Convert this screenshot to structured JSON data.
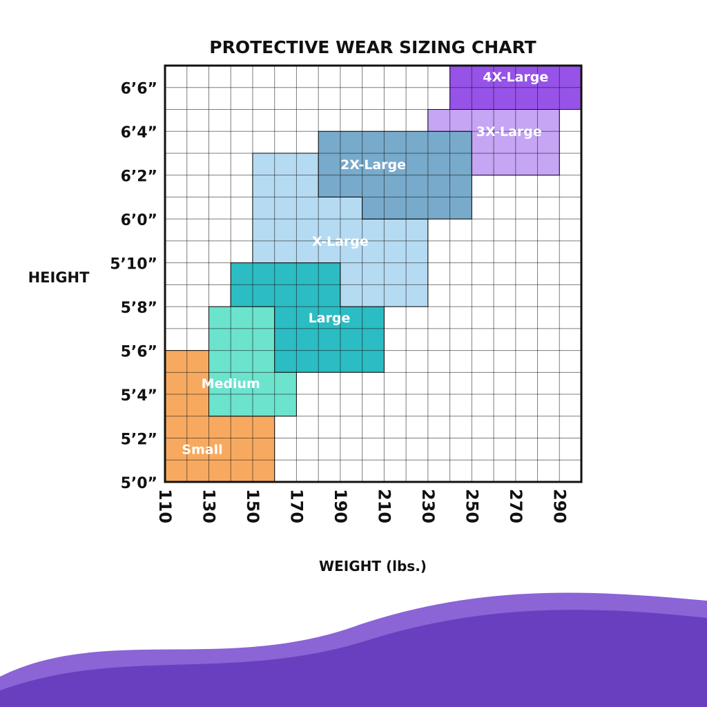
{
  "chart_data": {
    "type": "area",
    "title": "PROTECTIVE WEAR SIZING CHART",
    "xlabel": "WEIGHT (lbs.)",
    "ylabel": "HEIGHT",
    "x_unit": "lbs",
    "y_unit": "inches",
    "xlim": [
      110,
      300
    ],
    "ylim": [
      60,
      79
    ],
    "x_ticks": [
      {
        "value": 110,
        "label": "110"
      },
      {
        "value": 130,
        "label": "130"
      },
      {
        "value": 150,
        "label": "150"
      },
      {
        "value": 170,
        "label": "170"
      },
      {
        "value": 190,
        "label": "190"
      },
      {
        "value": 210,
        "label": "210"
      },
      {
        "value": 230,
        "label": "230"
      },
      {
        "value": 250,
        "label": "250"
      },
      {
        "value": 270,
        "label": "270"
      },
      {
        "value": 290,
        "label": "290"
      }
    ],
    "y_ticks": [
      {
        "value": 60,
        "label": "5’0”"
      },
      {
        "value": 62,
        "label": "5’2”"
      },
      {
        "value": 64,
        "label": "5’4”"
      },
      {
        "value": 66,
        "label": "5’6”"
      },
      {
        "value": 68,
        "label": "5’8”"
      },
      {
        "value": 70,
        "label": "5’10”"
      },
      {
        "value": 72,
        "label": "6’0”"
      },
      {
        "value": 74,
        "label": "6’2”"
      },
      {
        "value": 76,
        "label": "6’4”"
      },
      {
        "value": 78,
        "label": "6’6”"
      }
    ],
    "grid": true,
    "grid_x_step": 10,
    "grid_y_step": 1,
    "regions": [
      {
        "name": "Small",
        "color": "#f7aa5f",
        "label_at": [
          127,
          61.5
        ],
        "polygon": [
          [
            110,
            60
          ],
          [
            160,
            60
          ],
          [
            160,
            63
          ],
          [
            130,
            63
          ],
          [
            130,
            66
          ],
          [
            110,
            66
          ]
        ]
      },
      {
        "name": "Medium",
        "color": "#6be3cd",
        "label_at": [
          140,
          64.5
        ],
        "polygon": [
          [
            130,
            63
          ],
          [
            170,
            63
          ],
          [
            170,
            66
          ],
          [
            160,
            66
          ],
          [
            160,
            68
          ],
          [
            150,
            68
          ],
          [
            150,
            69
          ],
          [
            140,
            69
          ],
          [
            140,
            68
          ],
          [
            130,
            68
          ]
        ]
      },
      {
        "name": "Large",
        "color": "#2cbcc3",
        "label_at": [
          185,
          67.5
        ],
        "polygon": [
          [
            160,
            65
          ],
          [
            210,
            65
          ],
          [
            210,
            68
          ],
          [
            190,
            68
          ],
          [
            190,
            70
          ],
          [
            140,
            70
          ],
          [
            140,
            68
          ],
          [
            160,
            68
          ]
        ]
      },
      {
        "name": "X-Large",
        "color": "#b5dbf2",
        "label_at": [
          190,
          71
        ],
        "polygon": [
          [
            190,
            68
          ],
          [
            230,
            68
          ],
          [
            230,
            72
          ],
          [
            200,
            72
          ],
          [
            200,
            73
          ],
          [
            180,
            73
          ],
          [
            180,
            75
          ],
          [
            150,
            75
          ],
          [
            150,
            70
          ],
          [
            190,
            70
          ]
        ]
      },
      {
        "name": "2X-Large",
        "color": "#78aacb",
        "label_at": [
          205,
          74.5
        ],
        "polygon": [
          [
            180,
            73
          ],
          [
            200,
            73
          ],
          [
            200,
            72
          ],
          [
            250,
            72
          ],
          [
            250,
            76
          ],
          [
            180,
            76
          ]
        ]
      },
      {
        "name": "3X-Large",
        "color": "#c5a5f4",
        "label_at": [
          267,
          76
        ],
        "polygon": [
          [
            250,
            74
          ],
          [
            290,
            74
          ],
          [
            290,
            77
          ],
          [
            230,
            77
          ],
          [
            230,
            76
          ],
          [
            250,
            76
          ]
        ]
      },
      {
        "name": "4X-Large",
        "color": "#9753e8",
        "label_at": [
          270,
          78.5
        ],
        "polygon": [
          [
            240,
            77
          ],
          [
            300,
            77
          ],
          [
            300,
            79
          ],
          [
            240,
            79
          ]
        ]
      }
    ]
  },
  "colors": {
    "wave_light": "#8b64d6",
    "wave_dark": "#6a3fbf",
    "text": "#111111",
    "grid": "#111111"
  }
}
